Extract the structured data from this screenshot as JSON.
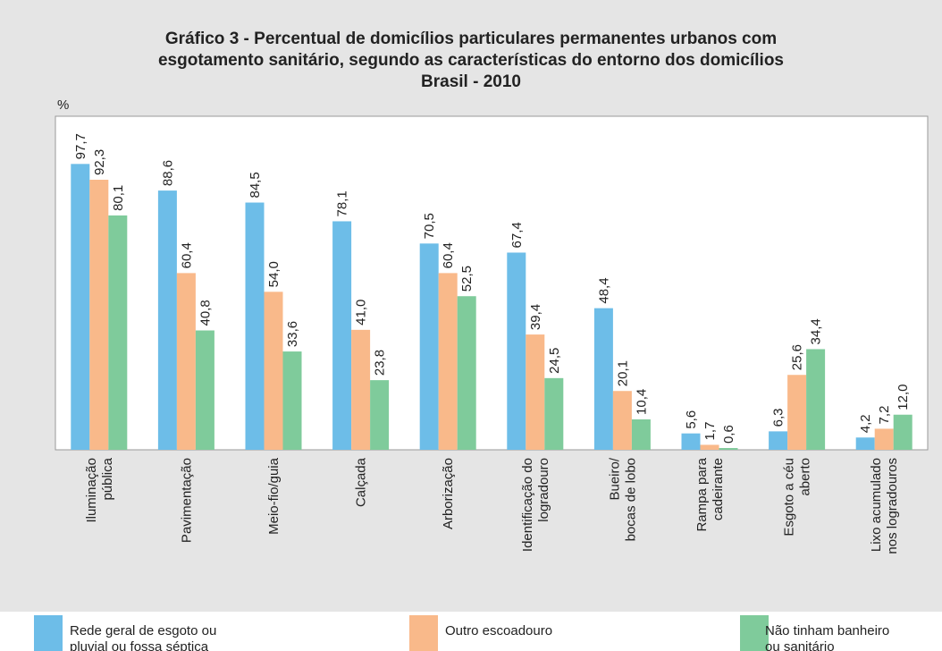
{
  "chart_data": {
    "type": "bar",
    "title": [
      "Gráfico 3 - Percentual de domicílios particulares permanentes urbanos com",
      "esgotamento sanitário, segundo as características do entorno dos domicílios",
      "Brasil - 2010"
    ],
    "y_label": "%",
    "categories": [
      "Iluminação\npública",
      "Pavimentação",
      "Meio-fio/guia",
      "Calçada",
      "Arborização",
      "Identificação do\nlogradouro",
      "Bueiro/\nbocas de lobo",
      "Rampa para\ncadeirante",
      "Esgoto a céu\naberto",
      "Lixo acumulado\nnos logradouros"
    ],
    "series": [
      {
        "name": "Rede geral de esgoto ou\npluvial ou fossa séptica",
        "color": "#6dbde8",
        "values": [
          97.7,
          88.6,
          84.5,
          78.1,
          70.5,
          67.4,
          48.4,
          5.6,
          6.3,
          4.2
        ],
        "value_labels": [
          "97,7",
          "88,6",
          "84,5",
          "78,1",
          "70,5",
          "67,4",
          "48,4",
          "5,6",
          "6,3",
          "4,2"
        ]
      },
      {
        "name": "Outro escoadouro",
        "color": "#f9b98a",
        "values": [
          92.3,
          60.4,
          54.0,
          41.0,
          60.4,
          39.4,
          20.1,
          1.7,
          25.6,
          7.2
        ],
        "value_labels": [
          "92,3",
          "60,4",
          "54,0",
          "41,0",
          "60,4",
          "39,4",
          "20,1",
          "1,7",
          "25,6",
          "7,2"
        ]
      },
      {
        "name": "Não tinham banheiro\nou sanitário",
        "color": "#7fcb9b",
        "values": [
          80.1,
          40.8,
          33.6,
          23.8,
          52.5,
          24.5,
          10.4,
          0.6,
          34.4,
          12.0
        ],
        "value_labels": [
          "80,1",
          "40,8",
          "33,6",
          "23,8",
          "52,5",
          "24,5",
          "10,4",
          "0,6",
          "34,4",
          "12,0"
        ]
      }
    ],
    "ylim": [
      0,
      114
    ]
  }
}
